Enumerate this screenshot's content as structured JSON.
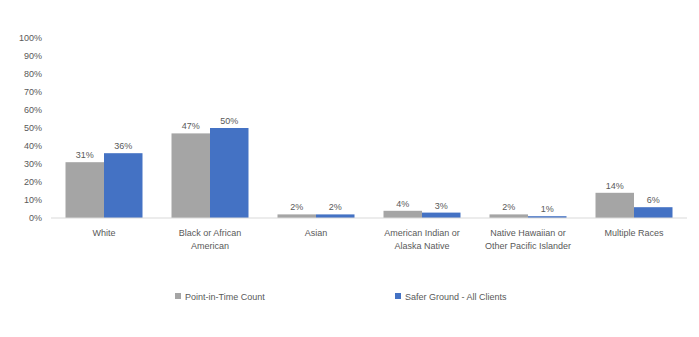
{
  "chart_data": {
    "type": "bar",
    "categories": [
      "White",
      "Black or African American",
      "Asian",
      "American Indian or Alaska Native",
      "Native Hawaiian or Other Pacific Islander",
      "Multiple Races"
    ],
    "series": [
      {
        "name": "Point-in-Time Count",
        "color": "#a5a5a5",
        "values": [
          31,
          47,
          2,
          4,
          2,
          14
        ],
        "value_labels": [
          "31%",
          "47%",
          "2%",
          "4%",
          "2%",
          "14%"
        ]
      },
      {
        "name": "Safer Ground - All Clients",
        "color": "#4472c4",
        "values": [
          36,
          50,
          2,
          3,
          1,
          6
        ],
        "value_labels": [
          "36%",
          "50%",
          "2%",
          "3%",
          "1%",
          "6%"
        ]
      }
    ],
    "ylim": [
      0,
      100
    ],
    "yticks": [
      {
        "value": 0,
        "label": "0%"
      },
      {
        "value": 10,
        "label": "10%"
      },
      {
        "value": 20,
        "label": "20%"
      },
      {
        "value": 30,
        "label": "30%"
      },
      {
        "value": 40,
        "label": "40%"
      },
      {
        "value": 50,
        "label": "50%"
      },
      {
        "value": 60,
        "label": "60%"
      },
      {
        "value": 70,
        "label": "70%"
      },
      {
        "value": 80,
        "label": "80%"
      },
      {
        "value": 90,
        "label": "90%"
      },
      {
        "value": 100,
        "label": "100%"
      }
    ],
    "grid": false,
    "legend": "bottom",
    "data_labels": true
  }
}
